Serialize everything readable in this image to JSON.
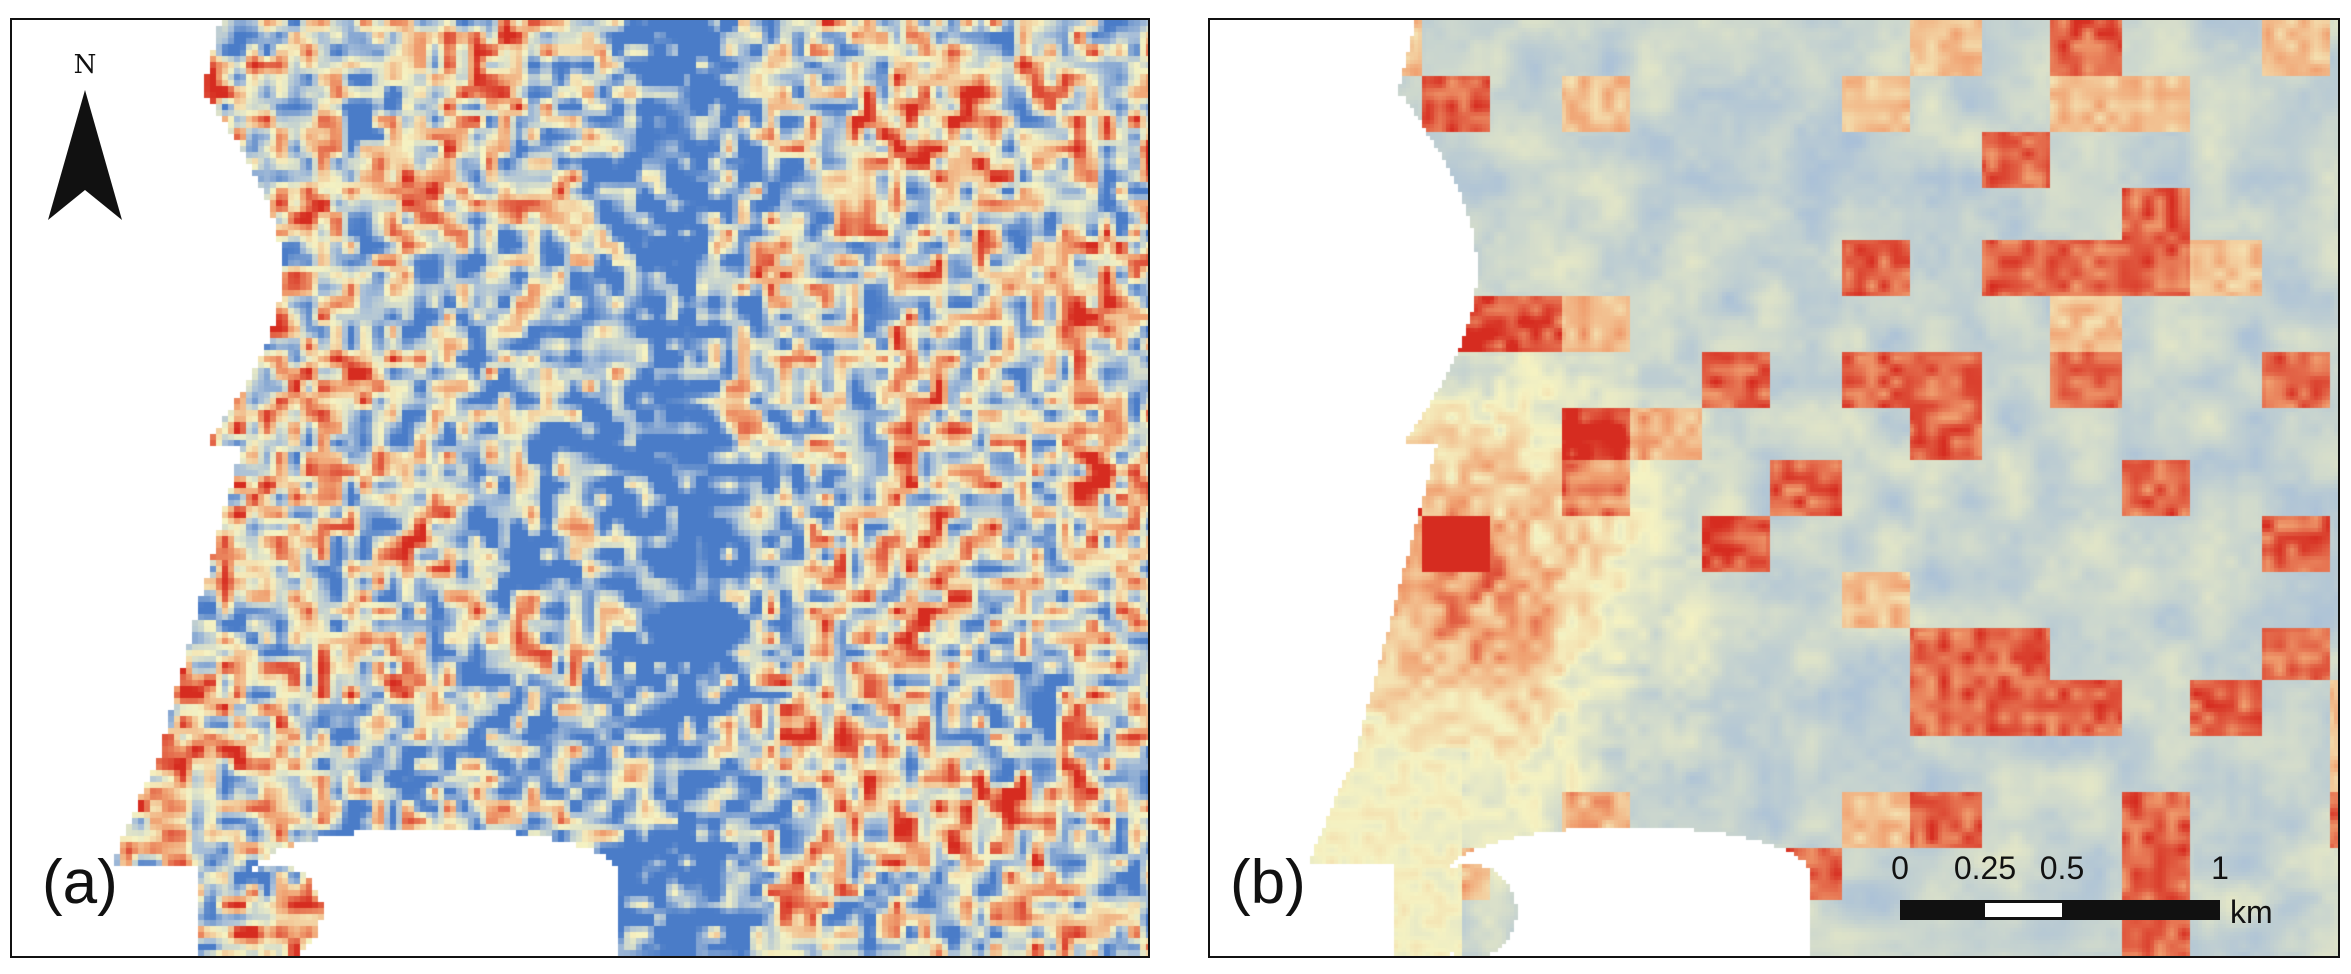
{
  "panels": {
    "a": {
      "label": "(a)"
    },
    "b": {
      "label": "(b)"
    }
  },
  "north_arrow": {
    "letter": "N",
    "icon": "north-arrow-icon"
  },
  "scale_bar": {
    "ticks": [
      "0",
      "0.25",
      "0.5",
      "1"
    ],
    "unit": "km"
  },
  "colors": {
    "low": "#4a7cc8",
    "mid_low": "#a8bfd8",
    "mid": "#f5f2c2",
    "mid_high": "#f0a070",
    "high": "#d62c20",
    "frame": "#111111"
  }
}
